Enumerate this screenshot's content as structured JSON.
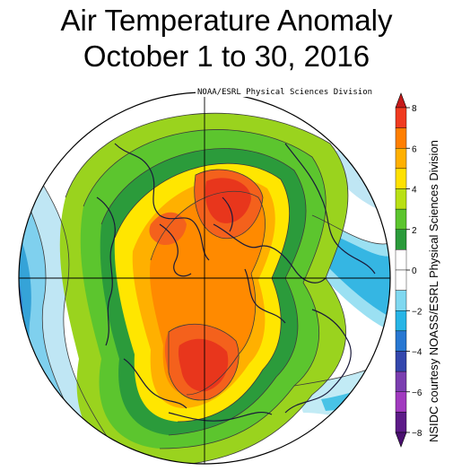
{
  "title": {
    "line1": "Air Temperature Anomaly",
    "line2": "October 1 to 30, 2016"
  },
  "map": {
    "credit": "NOAA/ESRL Physical Sciences Division",
    "projection": "north-polar-stereographic"
  },
  "colorbar": {
    "ticks": [
      "8",
      "6",
      "4",
      "2",
      "0",
      "−2",
      "−4",
      "−6",
      "−8"
    ],
    "colors": [
      "#f03b20",
      "#ff7f00",
      "#ffb000",
      "#ffe100",
      "#b9e015",
      "#5cc52e",
      "#2b9b3b",
      "#ffffff",
      "#ffffff",
      "#7fd8f0",
      "#27b5e6",
      "#2878d2",
      "#3447ad",
      "#7b3eb0",
      "#a13abf",
      "#5d1b88"
    ],
    "side_credit": "NSIDC courtesy NOASS/ESRL Physical Sciences Division"
  },
  "colors": {
    "coast": "#1a1a3a",
    "contour": "#3c3c3c",
    "ocean_cold": "#35a3d8"
  }
}
